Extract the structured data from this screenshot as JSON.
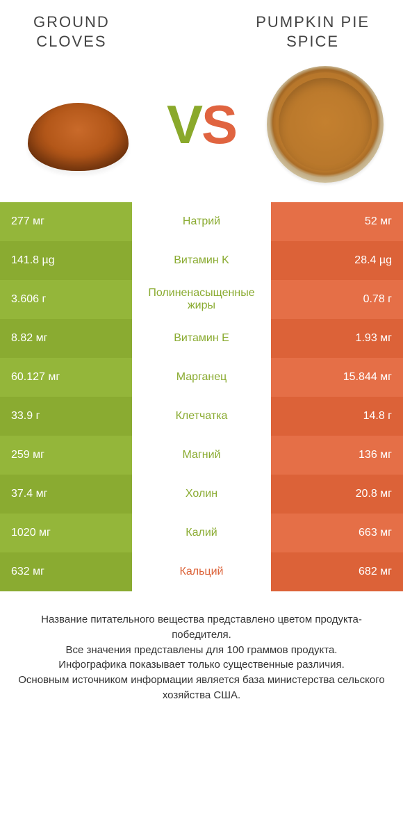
{
  "colors": {
    "left_odd": "#94b63a",
    "left_even": "#8aab31",
    "right_odd": "#e56f47",
    "right_even": "#dc6238",
    "label_green": "#8aab31",
    "label_orange": "#dc6238",
    "bg": "#ffffff"
  },
  "header": {
    "left_title": "GROUND\nCLOVES",
    "right_title": "PUMPKIN PIE\nSPICE"
  },
  "vs": {
    "v": "V",
    "s": "S"
  },
  "rows": [
    {
      "left": "277 мг",
      "label": "Натрий",
      "winner": "left",
      "right": "52 мг"
    },
    {
      "left": "141.8 µg",
      "label": "Витамин K",
      "winner": "left",
      "right": "28.4 µg"
    },
    {
      "left": "3.606 г",
      "label": "Полиненасыщенные жиры",
      "winner": "left",
      "right": "0.78 г"
    },
    {
      "left": "8.82 мг",
      "label": "Витамин E",
      "winner": "left",
      "right": "1.93 мг"
    },
    {
      "left": "60.127 мг",
      "label": "Марганец",
      "winner": "left",
      "right": "15.844 мг"
    },
    {
      "left": "33.9 г",
      "label": "Клетчатка",
      "winner": "left",
      "right": "14.8 г"
    },
    {
      "left": "259 мг",
      "label": "Магний",
      "winner": "left",
      "right": "136 мг"
    },
    {
      "left": "37.4 мг",
      "label": "Холин",
      "winner": "left",
      "right": "20.8 мг"
    },
    {
      "left": "1020 мг",
      "label": "Калий",
      "winner": "left",
      "right": "663 мг"
    },
    {
      "left": "632 мг",
      "label": "Кальций",
      "winner": "right",
      "right": "682 мг"
    }
  ],
  "footer": {
    "line1": "Название питательного вещества представлено цветом продукта-победителя.",
    "line2": "Все значения представлены для 100 граммов продукта.",
    "line3": "Инфографика показывает только существенные различия.",
    "line4": "Основным источником информации является база министерства сельского хозяйства США."
  }
}
